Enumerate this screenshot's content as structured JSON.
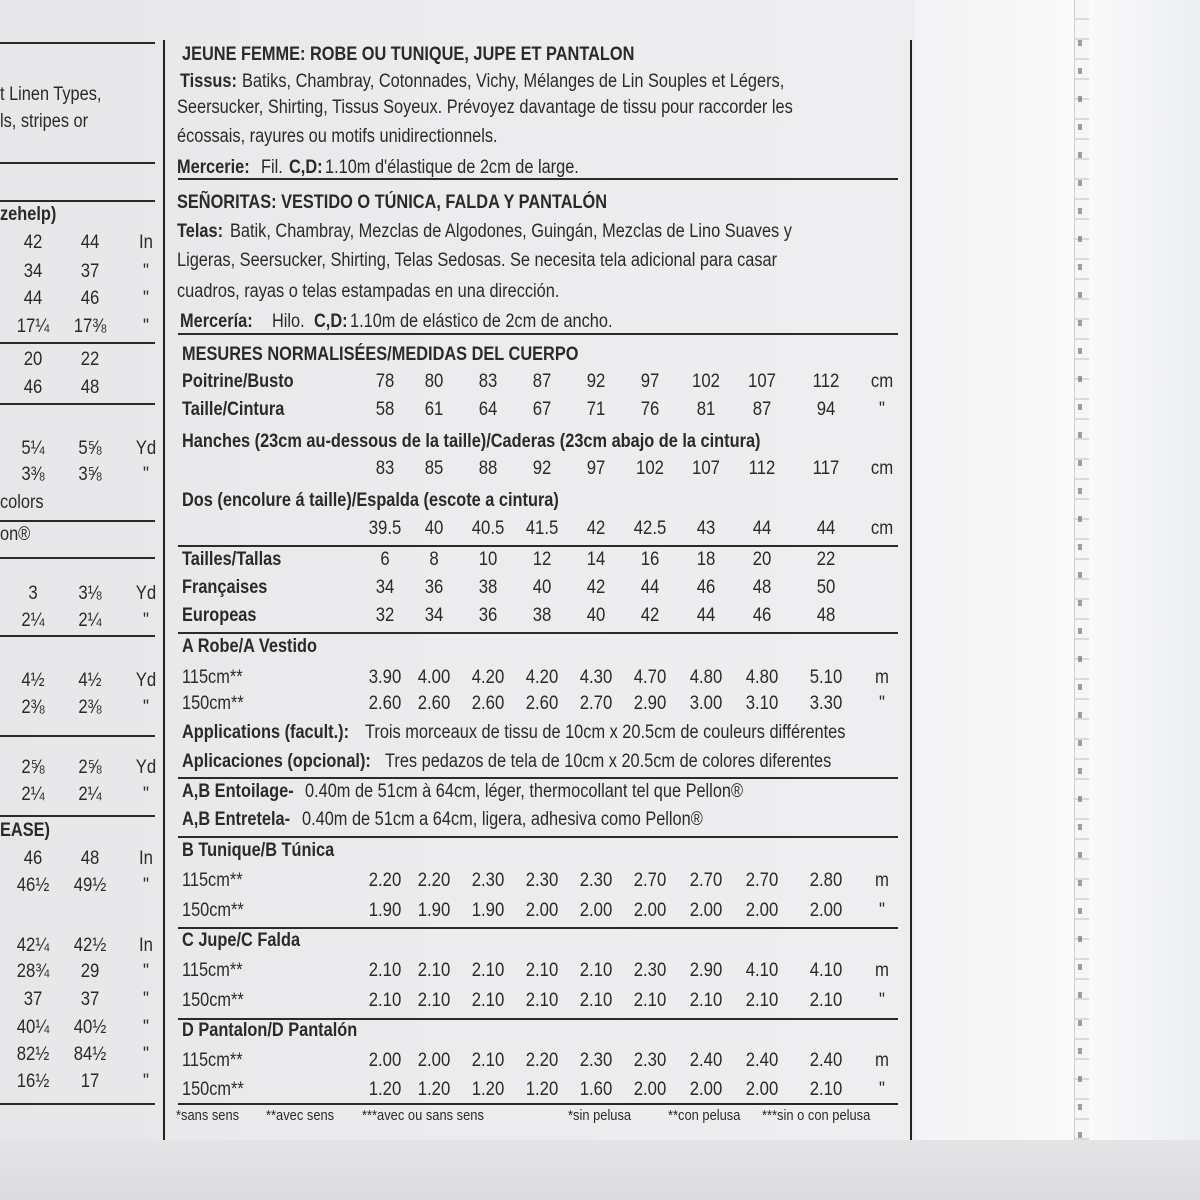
{
  "left_column": {
    "text_lines": [
      "t Linen Types,",
      "ls, stripes or"
    ],
    "sizehelp_header": "zehelp)",
    "rows": [
      [
        "42",
        "44",
        "In"
      ],
      [
        "34",
        "37",
        "\""
      ],
      [
        "44",
        "46",
        "\""
      ],
      [
        "17¼",
        "17⅜",
        "\""
      ],
      [
        "20",
        "22",
        ""
      ],
      [
        "46",
        "48",
        ""
      ],
      [
        "5¼",
        "5⅝",
        "Yd"
      ],
      [
        "3⅜",
        "3⅝",
        "\""
      ],
      [
        "3",
        "3⅛",
        "Yd"
      ],
      [
        "2¼",
        "2¼",
        "\""
      ],
      [
        "4½",
        "4½",
        "Yd"
      ],
      [
        "2⅜",
        "2⅜",
        "\""
      ],
      [
        "2⅝",
        "2⅝",
        "Yd"
      ],
      [
        "2¼",
        "2¼",
        "\""
      ],
      [
        "46",
        "48",
        "In"
      ],
      [
        "46½",
        "49½",
        "\""
      ],
      [
        "42¼",
        "42½",
        "In"
      ],
      [
        "28¾",
        "29",
        "\""
      ],
      [
        "37",
        "37",
        "\""
      ],
      [
        "40¼",
        "40½",
        "\""
      ],
      [
        "82½",
        "84½",
        "\""
      ],
      [
        "16½",
        "17",
        "\""
      ]
    ],
    "colors_fragment": "colors",
    "pellon_fragment": "on®",
    "ease_header": "EASE)"
  },
  "french": {
    "title": "JEUNE FEMME: ROBE OU TUNIQUE, JUPE ET PANTALON",
    "fabrics_label": "Tissus:",
    "fabrics_lines": [
      "Batiks, Chambray, Cotonnades, Vichy, Mélanges de Lin Souples et Légers,",
      "Seersucker, Shirting, Tissus Soyeux. Prévoyez davantage de tissu pour raccorder les",
      "écossais, rayures ou motifs unidirectionnels."
    ],
    "notions_label": "Mercerie:",
    "notions_text": "Fil.",
    "notions_views": "C,D:",
    "notions_rest": "1.10m d'élastique de 2cm de large."
  },
  "spanish": {
    "title": "SEÑORITAS: VESTIDO O TÚNICA, FALDA Y PANTALÓN",
    "fabrics_label": "Telas:",
    "fabrics_lines": [
      "Batik, Chambray, Mezclas de Algodones, Guingán, Mezclas de Lino Suaves y",
      "Ligeras, Seersucker, Shirting, Telas Sedosas. Se necesita tela adicional para casar",
      "cuadros, rayas o telas estampadas en una dirección."
    ],
    "notions_label": "Mercería:",
    "notions_text": "Hilo.",
    "notions_views": "C,D:",
    "notions_rest": "1.10m de elástico de 2cm de ancho."
  },
  "measurements": {
    "title": "MESURES NORMALISÉES/MEDIDAS DEL CUERPO",
    "rows": [
      {
        "label": "Poitrine/Busto",
        "values": [
          "78",
          "80",
          "83",
          "87",
          "92",
          "97",
          "102",
          "107",
          "112"
        ],
        "unit": "cm"
      },
      {
        "label": "Taille/Cintura",
        "values": [
          "58",
          "61",
          "64",
          "67",
          "71",
          "76",
          "81",
          "87",
          "94"
        ],
        "unit": "\""
      },
      {
        "label": "Hanches (23cm au-dessous de la taille)/Caderas (23cm abajo de la cintura)",
        "values": [
          "83",
          "85",
          "88",
          "92",
          "97",
          "102",
          "107",
          "112",
          "117"
        ],
        "unit": "cm"
      },
      {
        "label": "Dos (encolure á taille)/Espalda (escote a cintura)",
        "values": [
          "39.5",
          "40",
          "40.5",
          "41.5",
          "42",
          "42.5",
          "43",
          "44",
          "44"
        ],
        "unit": "cm"
      }
    ],
    "sizes": [
      {
        "label": "Tailles/Tallas",
        "values": [
          "6",
          "8",
          "10",
          "12",
          "14",
          "16",
          "18",
          "20",
          "22"
        ]
      },
      {
        "label": "Françaises",
        "values": [
          "34",
          "36",
          "38",
          "40",
          "42",
          "44",
          "46",
          "48",
          "50"
        ]
      },
      {
        "label": "Europeas",
        "values": [
          "32",
          "34",
          "36",
          "38",
          "40",
          "42",
          "44",
          "46",
          "48"
        ]
      }
    ]
  },
  "views": [
    {
      "title": "A Robe/A Vestido",
      "rows": [
        {
          "label": "115cm**",
          "values": [
            "3.90",
            "4.00",
            "4.20",
            "4.20",
            "4.30",
            "4.70",
            "4.80",
            "4.80",
            "5.10"
          ],
          "unit": "m"
        },
        {
          "label": "150cm**",
          "values": [
            "2.60",
            "2.60",
            "2.60",
            "2.60",
            "2.70",
            "2.90",
            "3.00",
            "3.10",
            "3.30"
          ],
          "unit": "\""
        }
      ]
    },
    {
      "title": "B Tunique/B Túnica",
      "rows": [
        {
          "label": "115cm**",
          "values": [
            "2.20",
            "2.20",
            "2.30",
            "2.30",
            "2.30",
            "2.70",
            "2.70",
            "2.70",
            "2.80"
          ],
          "unit": "m"
        },
        {
          "label": "150cm**",
          "values": [
            "1.90",
            "1.90",
            "1.90",
            "2.00",
            "2.00",
            "2.00",
            "2.00",
            "2.00",
            "2.00"
          ],
          "unit": "\""
        }
      ]
    },
    {
      "title": "C Jupe/C Falda",
      "rows": [
        {
          "label": "115cm**",
          "values": [
            "2.10",
            "2.10",
            "2.10",
            "2.10",
            "2.10",
            "2.30",
            "2.90",
            "4.10",
            "4.10"
          ],
          "unit": "m"
        },
        {
          "label": "150cm**",
          "values": [
            "2.10",
            "2.10",
            "2.10",
            "2.10",
            "2.10",
            "2.10",
            "2.10",
            "2.10",
            "2.10"
          ],
          "unit": "\""
        }
      ]
    },
    {
      "title": "D Pantalon/D Pantalón",
      "rows": [
        {
          "label": "115cm**",
          "values": [
            "2.00",
            "2.00",
            "2.10",
            "2.20",
            "2.30",
            "2.30",
            "2.40",
            "2.40",
            "2.40"
          ],
          "unit": "m"
        },
        {
          "label": "150cm**",
          "values": [
            "1.20",
            "1.20",
            "1.20",
            "1.20",
            "1.60",
            "2.00",
            "2.00",
            "2.00",
            "2.10"
          ],
          "unit": "\""
        }
      ]
    }
  ],
  "applications": {
    "fr_label": "Applications (facult.):",
    "fr_text": "Trois morceaux de tissu de 10cm x 20.5cm de couleurs différentes",
    "es_label": "Aplicaciones (opcional):",
    "es_text": "Tres pedazos de tela de 10cm x 20.5cm de colores diferentes"
  },
  "interfacing": {
    "fr_label": "A,B Entoilage-",
    "fr_text": "0.40m de 51cm à 64cm, léger, thermocollant tel que Pellon®",
    "es_label": "A,B Entretela-",
    "es_text": "0.40m de 51cm a 64cm, ligera, adhesiva como Pellon®"
  },
  "footnotes": [
    "*sans sens",
    "**avec sens",
    "***avec ou sans sens",
    "*sin pelusa",
    "**con pelusa",
    "***sin o con pelusa"
  ]
}
